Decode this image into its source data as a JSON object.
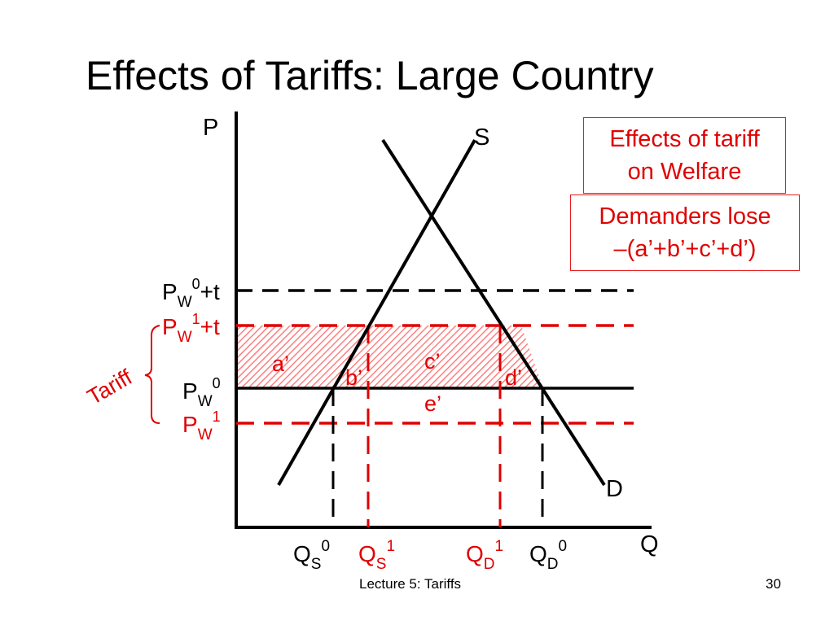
{
  "title": "Effects of Tariffs:  Large Country",
  "colors": {
    "accent": "#e00000",
    "ink": "#000000",
    "hatch": "#ffb3b3"
  },
  "axes": {
    "y_label": "P",
    "x_label": "Q"
  },
  "curves": {
    "supply": "S",
    "demand": "D"
  },
  "price_labels": {
    "pw0_plus_t": {
      "base": "P",
      "sub": "W",
      "sup": "0",
      "suffix": "+t"
    },
    "pw1_plus_t": {
      "base": "P",
      "sub": "W",
      "sup": "1",
      "suffix": "+t"
    },
    "pw0": {
      "base": "P",
      "sub": "W",
      "sup": "0",
      "suffix": ""
    },
    "pw1": {
      "base": "P",
      "sub": "W",
      "sup": "1",
      "suffix": ""
    }
  },
  "quantity_labels": {
    "qs0": {
      "base": "Q",
      "sub": "S",
      "sup": "0"
    },
    "qs1": {
      "base": "Q",
      "sub": "S",
      "sup": "1"
    },
    "qd1": {
      "base": "Q",
      "sub": "D",
      "sup": "1"
    },
    "qd0": {
      "base": "Q",
      "sub": "D",
      "sup": "0"
    }
  },
  "tariff_label": "Tariff",
  "areas": {
    "a": "a’",
    "b": "b’",
    "c": "c’",
    "d": "d’",
    "e": "e’"
  },
  "welfare_box": {
    "line1": "Effects of tariff",
    "line2": "on Welfare"
  },
  "demanders_box": {
    "line1": "Demanders lose",
    "line2": "–(a’+b’+c’+d’)"
  },
  "footer": {
    "label": "Lecture 5: Tariffs",
    "page": "30"
  }
}
